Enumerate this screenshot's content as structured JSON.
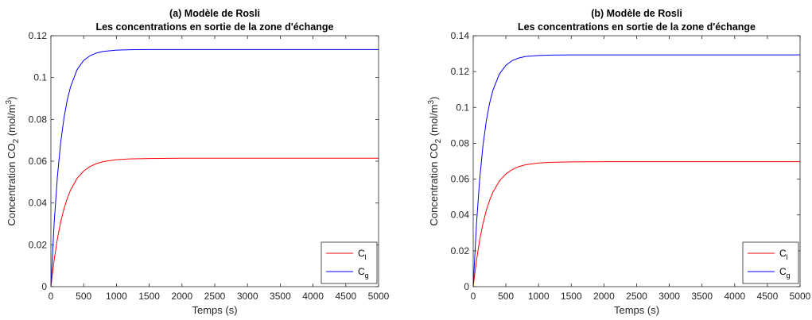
{
  "chart_data": [
    {
      "type": "line",
      "title": "(a) Modèle de Rosli",
      "subtitle": "Les concentrations en sortie de la zone d'échange",
      "xlabel": "Temps (s)",
      "ylabel": {
        "main": "Concentration CO",
        "sub": "2",
        "unit_open": " (mol/m",
        "sup": "3",
        "unit_close": ")"
      },
      "xlim": [
        0,
        5000
      ],
      "ylim": [
        0,
        0.12
      ],
      "x_ticks": [
        0,
        500,
        1000,
        1500,
        2000,
        2500,
        3000,
        3500,
        4000,
        4500,
        5000
      ],
      "x_tick_labels": [
        "0",
        "500",
        "1000",
        "1500",
        "2000",
        "2500",
        "3000",
        "3500",
        "4000",
        "4500",
        "5000"
      ],
      "y_ticks": [
        0,
        0.02,
        0.04,
        0.06,
        0.08,
        0.1,
        0.12
      ],
      "y_tick_labels": [
        "0",
        "0.02",
        "0.04",
        "0.06",
        "0.08",
        "0.1",
        "0.12"
      ],
      "grid": false,
      "legend_position": "bottom-right",
      "series": [
        {
          "name": "C",
          "name_sub": "l",
          "color": "#ff0000",
          "x": [
            0,
            50,
            100,
            150,
            200,
            250,
            300,
            400,
            500,
            600,
            700,
            800,
            1000,
            1200,
            1500,
            2000,
            3000,
            4000,
            5000
          ],
          "y": [
            0,
            0.0128,
            0.023,
            0.031,
            0.0373,
            0.0423,
            0.0462,
            0.0518,
            0.0553,
            0.0575,
            0.0589,
            0.0598,
            0.0607,
            0.0611,
            0.0613,
            0.0614,
            0.0614,
            0.0614,
            0.0614
          ]
        },
        {
          "name": "C",
          "name_sub": "g",
          "color": "#0000ff",
          "x": [
            0,
            50,
            100,
            150,
            200,
            250,
            300,
            400,
            500,
            600,
            700,
            800,
            1000,
            1200,
            1500,
            2000,
            3000,
            4000,
            5000
          ],
          "y": [
            0,
            0.0306,
            0.0529,
            0.0691,
            0.0808,
            0.0894,
            0.0956,
            0.1038,
            0.1082,
            0.1105,
            0.1118,
            0.1125,
            0.1131,
            0.1133,
            0.1134,
            0.1134,
            0.1134,
            0.1134,
            0.1134
          ]
        }
      ]
    },
    {
      "type": "line",
      "title": "(b) Modèle de Rosli",
      "subtitle": "Les concentrations en sortie de la zone d'échange",
      "xlabel": "Temps (s)",
      "ylabel": {
        "main": "Concentration CO",
        "sub": "2",
        "unit_open": " (mol/m",
        "sup": "3",
        "unit_close": ")"
      },
      "xlim": [
        0,
        5000
      ],
      "ylim": [
        0,
        0.14
      ],
      "x_ticks": [
        0,
        500,
        1000,
        1500,
        2000,
        2500,
        3000,
        3500,
        4000,
        4500,
        5000
      ],
      "x_tick_labels": [
        "0",
        "500",
        "1000",
        "1500",
        "2000",
        "2500",
        "3000",
        "3500",
        "4000",
        "4500",
        "5000"
      ],
      "y_ticks": [
        0,
        0.02,
        0.04,
        0.06,
        0.08,
        0.1,
        0.12,
        0.14
      ],
      "y_tick_labels": [
        "0",
        "0.02",
        "0.04",
        "0.06",
        "0.08",
        "0.1",
        "0.12",
        "0.14"
      ],
      "grid": false,
      "legend_position": "bottom-right",
      "series": [
        {
          "name": "C",
          "name_sub": "l",
          "color": "#ff0000",
          "x": [
            0,
            50,
            100,
            150,
            200,
            250,
            300,
            400,
            500,
            600,
            700,
            800,
            1000,
            1200,
            1500,
            2000,
            3000,
            4000,
            5000
          ],
          "y": [
            0,
            0.0145,
            0.0262,
            0.0353,
            0.0425,
            0.0481,
            0.0526,
            0.0589,
            0.0629,
            0.0654,
            0.067,
            0.068,
            0.069,
            0.0694,
            0.0696,
            0.0697,
            0.0697,
            0.0697,
            0.0697
          ]
        },
        {
          "name": "C",
          "name_sub": "g",
          "color": "#0000ff",
          "x": [
            0,
            50,
            100,
            150,
            200,
            250,
            300,
            400,
            500,
            600,
            700,
            800,
            1000,
            1200,
            1500,
            2000,
            3000,
            4000,
            5000
          ],
          "y": [
            0,
            0.0349,
            0.0604,
            0.0789,
            0.0924,
            0.1022,
            0.1094,
            0.1186,
            0.1235,
            0.1262,
            0.1276,
            0.1284,
            0.129,
            0.1292,
            0.1293,
            0.1293,
            0.1293,
            0.1293,
            0.1293
          ]
        }
      ]
    }
  ]
}
